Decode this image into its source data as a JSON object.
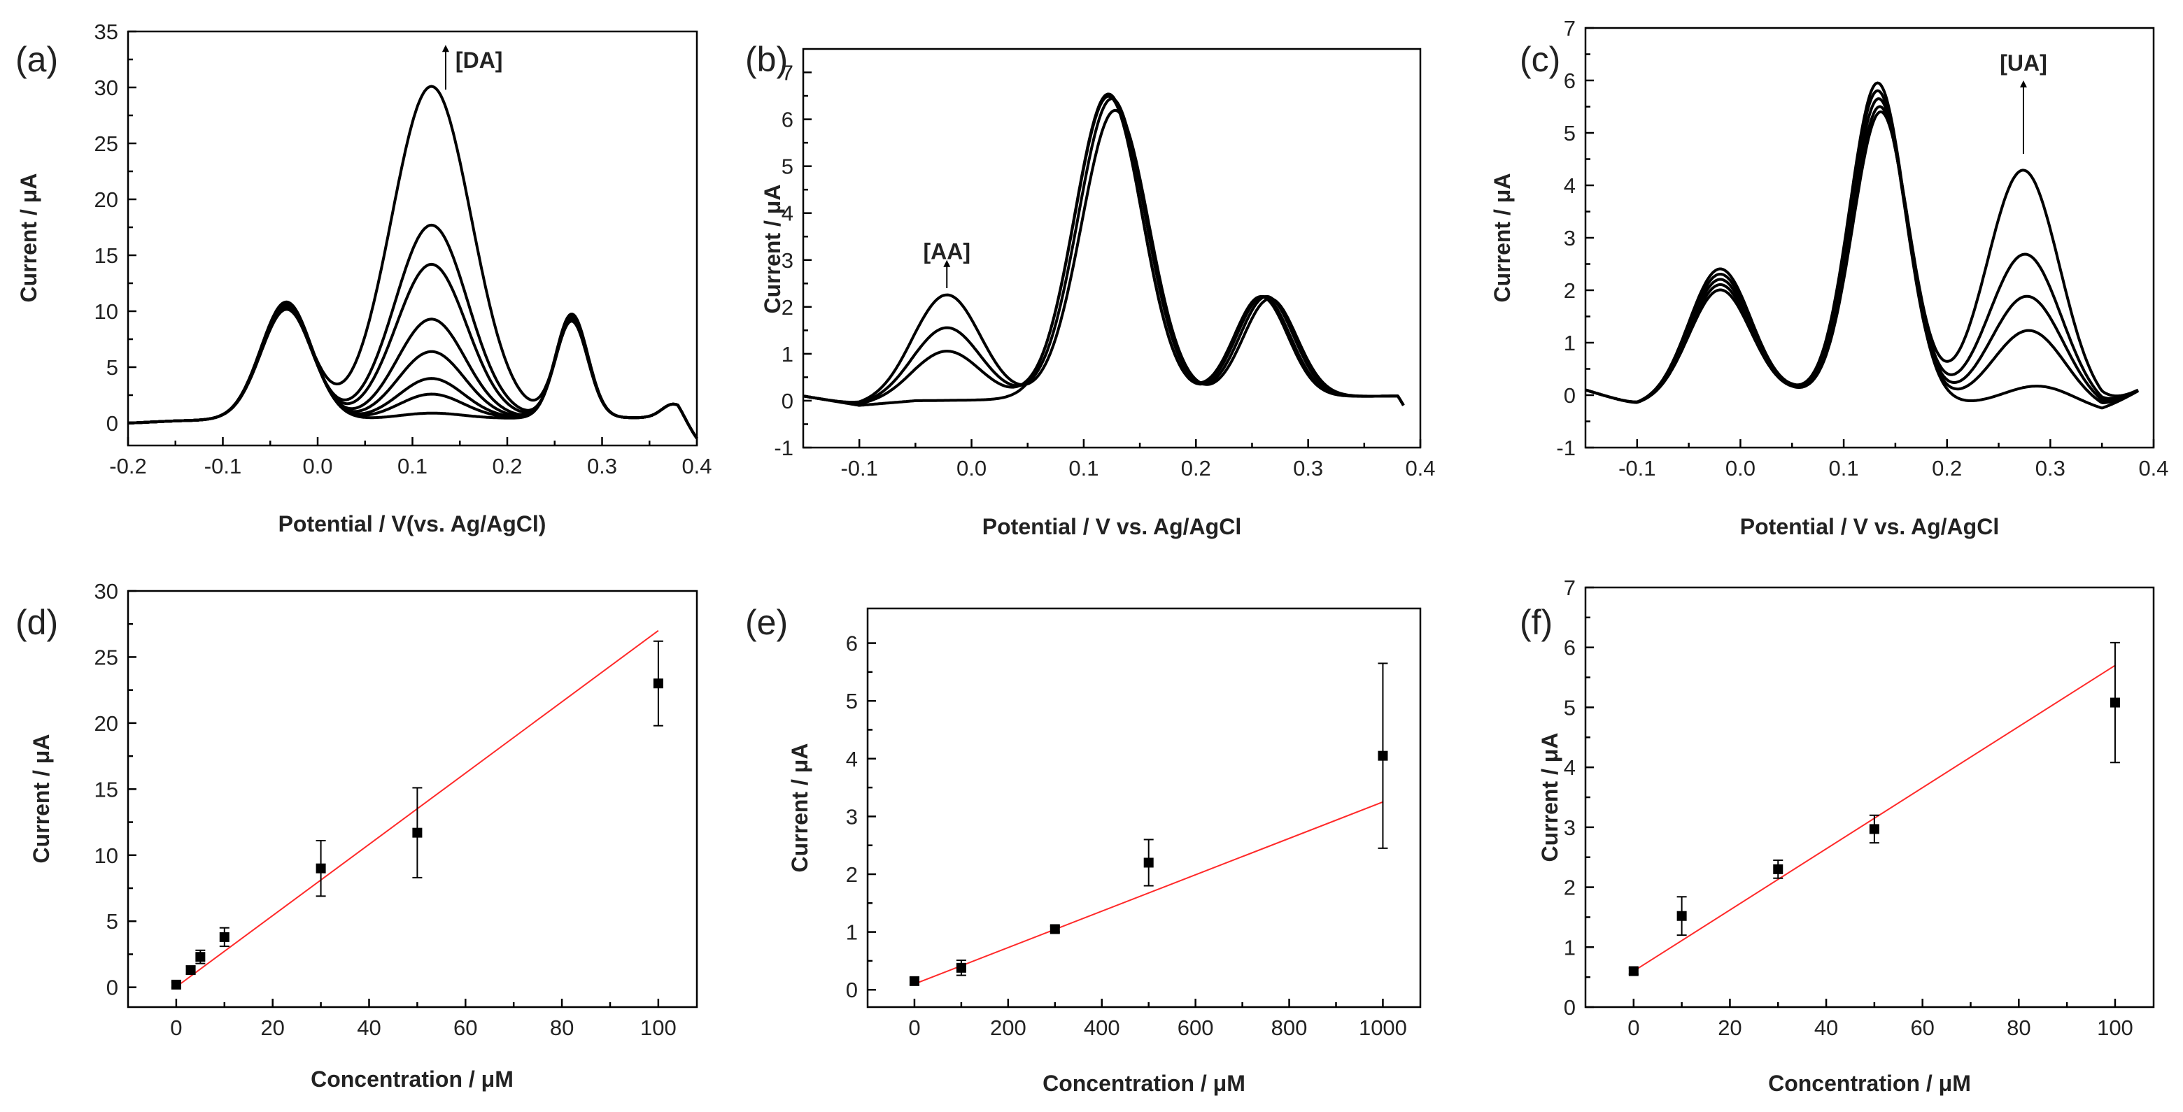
{
  "chart_data": [
    {
      "id": "a",
      "panel_label": "(a)",
      "type": "line",
      "xlabel": "Potential / V(vs. Ag/AgCl)",
      "ylabel": "Current / μA",
      "xlim": [
        -0.2,
        0.4
      ],
      "ylim": [
        -2,
        35
      ],
      "xticks": [
        -0.2,
        -0.1,
        0.0,
        0.1,
        0.2,
        0.3,
        0.4
      ],
      "xtick_labels": [
        "-0.2",
        "-0.1",
        "0.0",
        "0.1",
        "0.2",
        "0.3",
        "0.4"
      ],
      "yticks": [
        0,
        5,
        10,
        15,
        20,
        25,
        30,
        35
      ],
      "ytick_labels": [
        "0",
        "5",
        "10",
        "15",
        "20",
        "25",
        "30",
        "35"
      ],
      "annotation": {
        "text": "[DA]",
        "x": 0.135,
        "y": 32.5,
        "arrow_from": 29.8,
        "arrow_to": 33.8
      },
      "baseline": [
        [
          -0.2,
          0
        ],
        [
          -0.15,
          0.2
        ],
        [
          -0.1,
          0.3
        ],
        [
          0.38,
          0.5
        ],
        [
          0.4,
          -1.5
        ]
      ],
      "peaks": [
        {
          "mu": -0.033,
          "sigma": 0.027
        },
        {
          "mu": 0.268,
          "sigma": 0.017
        },
        {
          "mu": 0.375,
          "sigma": 0.012
        }
      ],
      "series": [
        {
          "name": "c1",
          "peaks": [
            10.5,
            9.3,
            1.2,
            0.5
          ]
        },
        {
          "name": "c2",
          "peaks": [
            10.4,
            9.2,
            1.2,
            2.2
          ]
        },
        {
          "name": "c3",
          "peaks": [
            10.3,
            9.1,
            1.2,
            3.6
          ]
        },
        {
          "name": "c4",
          "peaks": [
            10.2,
            9.0,
            1.2,
            6.0
          ]
        },
        {
          "name": "c5",
          "peaks": [
            10.1,
            8.9,
            1.2,
            8.9
          ]
        },
        {
          "name": "c6",
          "peaks": [
            10.0,
            8.8,
            1.2,
            13.8
          ]
        },
        {
          "name": "c7",
          "peaks": [
            9.9,
            8.7,
            1.2,
            17.3
          ]
        },
        {
          "name": "c8",
          "peaks": [
            9.8,
            8.6,
            1.2,
            29.7
          ]
        }
      ]
    },
    {
      "id": "b",
      "panel_label": "(b)",
      "type": "line",
      "xlabel": "Potential / V vs. Ag/AgCl",
      "ylabel": "Current / μA",
      "xlim": [
        -0.15,
        0.4
      ],
      "ylim": [
        -1,
        7.5
      ],
      "xticks": [
        -0.1,
        0.0,
        0.1,
        0.2,
        0.3,
        0.4
      ],
      "xtick_labels": [
        "-0.1",
        "0.0",
        "0.1",
        "0.2",
        "0.3",
        "0.4"
      ],
      "yticks": [
        -1,
        0,
        1,
        2,
        3,
        4,
        5,
        6,
        7
      ],
      "ytick_labels": [
        "-1",
        "0",
        "1",
        "2",
        "3",
        "4",
        "5",
        "6",
        "7"
      ],
      "annotation": {
        "text": "[AA]",
        "x": -0.022,
        "y": 3.2,
        "arrow_from": 2.4,
        "arrow_to": 3.0
      },
      "baseline": [
        [
          -0.15,
          0.1
        ],
        [
          -0.1,
          -0.1
        ],
        [
          -0.05,
          0.0
        ],
        [
          0.38,
          0.1
        ],
        [
          0.385,
          -0.1
        ]
      ],
      "series": [
        {
          "name": "c1",
          "peaks": [
            [
              0.0,
              -0.022,
              0.03
            ],
            [
              6.5,
              0.122,
              0.03
            ],
            [
              2.15,
              0.258,
              0.024
            ]
          ]
        },
        {
          "name": "c2",
          "peaks": [
            [
              1.05,
              -0.022,
              0.03
            ],
            [
              6.45,
              0.122,
              0.03
            ],
            [
              2.15,
              0.26,
              0.024
            ]
          ]
        },
        {
          "name": "c3",
          "peaks": [
            [
              1.55,
              -0.022,
              0.03
            ],
            [
              6.4,
              0.125,
              0.03
            ],
            [
              2.15,
              0.263,
              0.024
            ]
          ]
        },
        {
          "name": "c4",
          "peaks": [
            [
              2.25,
              -0.022,
              0.03
            ],
            [
              6.15,
              0.128,
              0.03
            ],
            [
              2.1,
              0.266,
              0.024
            ]
          ]
        }
      ]
    },
    {
      "id": "c",
      "panel_label": "(c)",
      "type": "line",
      "xlabel": "Potential / V vs. Ag/AgCl",
      "ylabel": "Current / μA",
      "xlim": [
        -0.15,
        0.4
      ],
      "ylim": [
        -1,
        7
      ],
      "xticks": [
        -0.1,
        0.0,
        0.1,
        0.2,
        0.3,
        0.4
      ],
      "xtick_labels": [
        "-0.1",
        "0.0",
        "0.1",
        "0.2",
        "0.3",
        "0.4"
      ],
      "yticks": [
        -1,
        0,
        1,
        2,
        3,
        4,
        5,
        6,
        7
      ],
      "ytick_labels": [
        "-1",
        "0",
        "1",
        "2",
        "3",
        "4",
        "5",
        "6",
        "7"
      ],
      "annotation": {
        "text": "[UA]",
        "x": 0.274,
        "y": 6.35,
        "arrow_from": 4.6,
        "arrow_to": 6.0
      },
      "baseline": [
        [
          -0.15,
          0.1
        ],
        [
          -0.1,
          -0.2
        ],
        [
          0.05,
          0.0
        ],
        [
          0.35,
          -0.35
        ],
        [
          0.4,
          0.25
        ]
      ],
      "series": [
        {
          "name": "c1",
          "peaks": [
            [
              2.5,
              -0.02,
              0.03
            ],
            [
              6.05,
              0.133,
              0.027
            ],
            [
              0.45,
              0.29,
              0.035
            ]
          ]
        },
        {
          "name": "c2",
          "peaks": [
            [
              2.4,
              -0.02,
              0.03
            ],
            [
              5.9,
              0.133,
              0.027
            ],
            [
              1.5,
              0.28,
              0.035
            ]
          ]
        },
        {
          "name": "c3",
          "peaks": [
            [
              2.3,
              -0.02,
              0.03
            ],
            [
              5.75,
              0.134,
              0.027
            ],
            [
              2.15,
              0.278,
              0.035
            ]
          ]
        },
        {
          "name": "c4",
          "peaks": [
            [
              2.2,
              -0.02,
              0.03
            ],
            [
              5.6,
              0.135,
              0.027
            ],
            [
              2.95,
              0.276,
              0.035
            ]
          ]
        },
        {
          "name": "c5",
          "peaks": [
            [
              2.1,
              -0.02,
              0.03
            ],
            [
              5.5,
              0.136,
              0.027
            ],
            [
              4.55,
              0.274,
              0.035
            ]
          ]
        }
      ]
    },
    {
      "id": "d",
      "panel_label": "(d)",
      "type": "scatter",
      "xlabel": "Concentration / μM",
      "ylabel": "Current / μA",
      "xlim": [
        -10,
        108
      ],
      "ylim": [
        -1.5,
        30
      ],
      "xticks": [
        0,
        20,
        40,
        60,
        80,
        100
      ],
      "xtick_labels": [
        "0",
        "20",
        "40",
        "60",
        "80",
        "100"
      ],
      "yticks": [
        0,
        5,
        10,
        15,
        20,
        25,
        30
      ],
      "ytick_labels": [
        "0",
        "5",
        "10",
        "15",
        "20",
        "25",
        "30"
      ],
      "points": [
        {
          "x": 0,
          "y": 0.2,
          "err": 0.2
        },
        {
          "x": 3,
          "y": 1.3,
          "err": 0.3
        },
        {
          "x": 5,
          "y": 2.3,
          "err": 0.5
        },
        {
          "x": 10,
          "y": 3.8,
          "err": 0.7
        },
        {
          "x": 30,
          "y": 9.0,
          "err": 2.1
        },
        {
          "x": 50,
          "y": 11.7,
          "err": 3.4
        },
        {
          "x": 100,
          "y": 23.0,
          "err": 3.2
        }
      ],
      "fit": {
        "x": [
          1,
          100
        ],
        "y": [
          0.3,
          27.0
        ]
      }
    },
    {
      "id": "e",
      "panel_label": "(e)",
      "type": "scatter",
      "xlabel": "Concentration / μM",
      "ylabel": "Current / μA",
      "xlim": [
        -100,
        1080
      ],
      "ylim": [
        -0.3,
        6.6
      ],
      "xticks": [
        0,
        200,
        400,
        600,
        800,
        1000
      ],
      "xtick_labels": [
        "0",
        "200",
        "400",
        "600",
        "800",
        "1000"
      ],
      "yticks": [
        0,
        1,
        2,
        3,
        4,
        5,
        6
      ],
      "ytick_labels": [
        "0",
        "1",
        "2",
        "3",
        "4",
        "5",
        "6"
      ],
      "points": [
        {
          "x": 0,
          "y": 0.15,
          "err": 0.06
        },
        {
          "x": 100,
          "y": 0.38,
          "err": 0.13
        },
        {
          "x": 300,
          "y": 1.05,
          "err": 0.05
        },
        {
          "x": 500,
          "y": 2.2,
          "err": 0.4
        },
        {
          "x": 1000,
          "y": 4.05,
          "err": 1.6
        }
      ],
      "fit": {
        "x": [
          0,
          1000
        ],
        "y": [
          0.1,
          3.25
        ]
      }
    },
    {
      "id": "f",
      "panel_label": "(f)",
      "type": "scatter",
      "xlabel": "Concentration / μM",
      "ylabel": "Current / μA",
      "xlim": [
        -10,
        108
      ],
      "ylim": [
        0,
        7
      ],
      "xticks": [
        0,
        20,
        40,
        60,
        80,
        100
      ],
      "xtick_labels": [
        "0",
        "20",
        "40",
        "60",
        "80",
        "100"
      ],
      "yticks": [
        0,
        1,
        2,
        3,
        4,
        5,
        6,
        7
      ],
      "ytick_labels": [
        "0",
        "1",
        "2",
        "3",
        "4",
        "5",
        "6",
        "7"
      ],
      "points": [
        {
          "x": 0,
          "y": 0.6,
          "err": 0.05
        },
        {
          "x": 10,
          "y": 1.52,
          "err": 0.32
        },
        {
          "x": 30,
          "y": 2.3,
          "err": 0.15
        },
        {
          "x": 50,
          "y": 2.97,
          "err": 0.23
        },
        {
          "x": 100,
          "y": 5.08,
          "err": 1.0
        }
      ],
      "fit": {
        "x": [
          0,
          100
        ],
        "y": [
          0.6,
          5.7
        ]
      }
    }
  ]
}
